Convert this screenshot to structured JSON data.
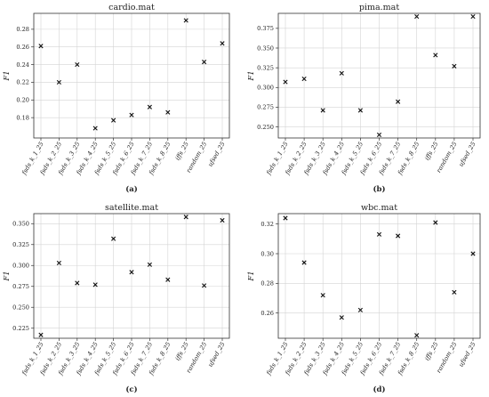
{
  "chart_data": [
    {
      "type": "scatter",
      "title": "cardio.mat",
      "caption": "(a)",
      "ylabel": "F1",
      "ylim": [
        0.157,
        0.298
      ],
      "yticks": [
        0.18,
        0.2,
        0.22,
        0.24,
        0.26,
        0.28
      ],
      "ytick_labels": [
        "0.18",
        "0.20",
        "0.22",
        "0.24",
        "0.26",
        "0.28"
      ],
      "grid": true,
      "categories": [
        "fsds_k_1_25",
        "fsds_k_2_25",
        "fsds_k_3_25",
        "fsds_k_4_25",
        "fsds_k_5_25",
        "fsds_k_6_25",
        "fsds_k_7_25",
        "fsds_k_8_25",
        "iffs_25",
        "random_25",
        "ufsed_25"
      ],
      "values": [
        0.261,
        0.22,
        0.24,
        0.168,
        0.177,
        0.183,
        0.192,
        0.186,
        0.29,
        0.243,
        0.264
      ]
    },
    {
      "type": "scatter",
      "title": "pima.mat",
      "caption": "(b)",
      "ylabel": "F1",
      "ylim": [
        0.236,
        0.394
      ],
      "yticks": [
        0.25,
        0.275,
        0.3,
        0.325,
        0.35,
        0.375
      ],
      "ytick_labels": [
        "0.250",
        "0.275",
        "0.300",
        "0.325",
        "0.350",
        "0.375"
      ],
      "grid": true,
      "categories": [
        "fsds_k_1_25",
        "fsds_k_2_25",
        "fsds_k_3_25",
        "fsds_k_4_25",
        "fsds_k_5_25",
        "fsds_k_6_25",
        "fsds_k_7_25",
        "fsds_k_8_25",
        "iffs_25",
        "random_25",
        "ufsed_25"
      ],
      "values": [
        0.307,
        0.311,
        0.271,
        0.318,
        0.271,
        0.24,
        0.282,
        0.39,
        0.341,
        0.327,
        0.39
      ]
    },
    {
      "type": "scatter",
      "title": "satellite.mat",
      "caption": "(c)",
      "ylabel": "F1",
      "ylim": [
        0.213,
        0.362
      ],
      "yticks": [
        0.225,
        0.25,
        0.275,
        0.3,
        0.325,
        0.35
      ],
      "ytick_labels": [
        "0.225",
        "0.250",
        "0.275",
        "0.300",
        "0.325",
        "0.350"
      ],
      "grid": true,
      "categories": [
        "fsds_k_1_25",
        "fsds_k_2_25",
        "fsds_k_3_25",
        "fsds_k_4_25",
        "fsds_k_5_25",
        "fsds_k_6_25",
        "fsds_k_7_25",
        "fsds_k_8_25",
        "iffs_25",
        "random_25",
        "ufsed_25"
      ],
      "values": [
        0.217,
        0.303,
        0.279,
        0.277,
        0.332,
        0.292,
        0.301,
        0.283,
        0.358,
        0.276,
        0.354
      ]
    },
    {
      "type": "scatter",
      "title": "wbc.mat",
      "caption": "(d)",
      "ylabel": "F1",
      "ylim": [
        0.243,
        0.327
      ],
      "yticks": [
        0.26,
        0.28,
        0.3,
        0.32
      ],
      "ytick_labels": [
        "0.26",
        "0.28",
        "0.30",
        "0.32"
      ],
      "grid": true,
      "categories": [
        "fsds_k_1_25",
        "fsds_k_2_25",
        "fsds_k_3_25",
        "fsds_k_4_25",
        "fsds_k_5_25",
        "fsds_k_6_25",
        "fsds_k_7_25",
        "fsds_k_8_25",
        "iffs_25",
        "random_25",
        "ufsed_25"
      ],
      "values": [
        0.324,
        0.294,
        0.272,
        0.257,
        0.262,
        0.313,
        0.312,
        0.245,
        0.321,
        0.274,
        0.3
      ]
    }
  ],
  "colors": {
    "marker": "#111111",
    "grid": "#d4d4d4",
    "axis": "#333333"
  },
  "marker_symbol": "x"
}
